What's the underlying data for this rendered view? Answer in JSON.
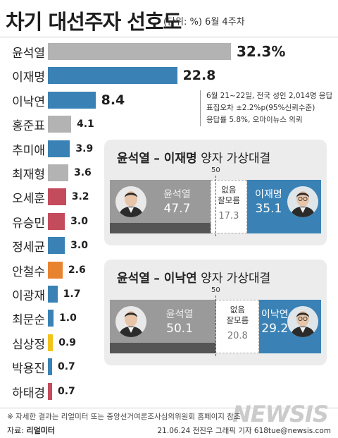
{
  "header": {
    "title": "차기 대선주자 선호도",
    "unit": "(단위: %) 6월 4주차"
  },
  "chart_data": [
    {
      "type": "bar",
      "orientation": "horizontal",
      "categories": [
        "윤석열",
        "이재명",
        "이낙연",
        "홍준표",
        "추미애",
        "최재형",
        "오세훈",
        "유승민",
        "정세균",
        "안철수",
        "이광재",
        "최문순",
        "심상정",
        "박용진",
        "하태경"
      ],
      "values": [
        32.3,
        22.8,
        8.4,
        4.1,
        3.9,
        3.6,
        3.2,
        3.0,
        3.0,
        2.6,
        1.7,
        1.0,
        0.9,
        0.7,
        0.7
      ],
      "labels": [
        "32.3%",
        "22.8",
        "8.4",
        "4.1",
        "3.9",
        "3.6",
        "3.2",
        "3.0",
        "3.0",
        "2.6",
        "1.7",
        "1.0",
        "0.9",
        "0.7",
        "0.7"
      ],
      "colors": [
        "#b3b3b3",
        "#3a82b5",
        "#3a82b5",
        "#b3b3b3",
        "#3a82b5",
        "#b3b3b3",
        "#c44b5c",
        "#c44b5c",
        "#3a82b5",
        "#e8842f",
        "#3a82b5",
        "#3a82b5",
        "#f2c31b",
        "#3a82b5",
        "#c44b5c"
      ],
      "xlim": [
        0,
        32.3
      ]
    },
    {
      "type": "bar",
      "orientation": "horizontal-stacked",
      "title_a": "윤석열",
      "title_b": "이재명",
      "title_rest": "양자 가상대결",
      "marker": "50",
      "segments": [
        {
          "name": "윤석열",
          "value": 47.7,
          "color": "#9a9a9a"
        },
        {
          "name": "없음 잘모름",
          "value": 17.3,
          "color": "#ffffff"
        },
        {
          "name": "이재명",
          "value": 35.1,
          "color": "#3a82b5"
        }
      ],
      "undecided_lines": [
        "없음",
        "잘모름"
      ]
    },
    {
      "type": "bar",
      "orientation": "horizontal-stacked",
      "title_a": "윤석열",
      "title_b": "이낙연",
      "title_rest": "양자 가상대결",
      "marker": "50",
      "segments": [
        {
          "name": "윤석열",
          "value": 50.1,
          "color": "#9a9a9a"
        },
        {
          "name": "없음 잘모름",
          "value": 20.8,
          "color": "#ffffff"
        },
        {
          "name": "이낙연",
          "value": 29.2,
          "color": "#3a82b5"
        }
      ],
      "undecided_lines": [
        "없음",
        "잘모름"
      ]
    }
  ],
  "note": {
    "lines": [
      "6월 21~22일, 전국 성인 2,014명 응답",
      "표집오차 ±2.2%p(95%신뢰수준)",
      "응답률 5.8%, 오마이뉴스 의뢰"
    ]
  },
  "footer": {
    "footnote": "※ 자세한 결과는 리얼미터 또는 중앙선거여론조사심의위원회 홈페이지 참조",
    "source_label": "자료:",
    "source_value": "리얼미터",
    "credit": "21.06.24 전진우 그래픽 기자 618tue@newsis.com",
    "watermark": "NEWSIS"
  }
}
